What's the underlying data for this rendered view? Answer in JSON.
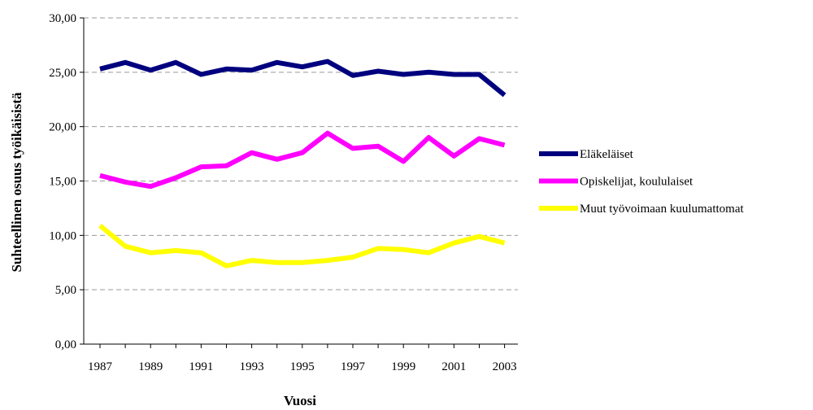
{
  "chart_data": {
    "type": "line",
    "title": "",
    "xlabel": "Vuosi",
    "ylabel": "Suhteellinen osuus työikäisistä",
    "ylim": [
      0,
      30
    ],
    "y_ticks": [
      "0,00",
      "5,00",
      "10,00",
      "15,00",
      "20,00",
      "25,00",
      "30,00"
    ],
    "x_tick_labels": [
      "1987",
      "1989",
      "1991",
      "1993",
      "1995",
      "1997",
      "1999",
      "2001",
      "2003"
    ],
    "grid": true,
    "legend_position": "right",
    "x": [
      1987,
      1988,
      1989,
      1990,
      1991,
      1992,
      1993,
      1994,
      1995,
      1996,
      1997,
      1998,
      1999,
      2000,
      2001,
      2002,
      2003
    ],
    "series": [
      {
        "name": "Eläkeläiset",
        "color": "#00007f",
        "values": [
          25.3,
          25.9,
          25.2,
          25.9,
          24.8,
          25.3,
          25.2,
          25.9,
          25.5,
          26.0,
          24.7,
          25.1,
          24.8,
          25.0,
          24.8,
          24.8,
          22.9
        ]
      },
      {
        "name": "Opiskelijat, koululaiset",
        "color": "#ff00ff",
        "values": [
          15.5,
          14.9,
          14.5,
          15.3,
          16.3,
          16.4,
          17.6,
          17.0,
          17.6,
          19.4,
          18.0,
          18.2,
          16.8,
          19.0,
          17.3,
          18.9,
          18.3
        ]
      },
      {
        "name": "Muut työvoimaan kuulumattomat",
        "color": "#ffff00",
        "values": [
          10.9,
          9.0,
          8.4,
          8.6,
          8.4,
          7.2,
          7.7,
          7.5,
          7.5,
          7.7,
          8.0,
          8.8,
          8.7,
          8.4,
          9.3,
          9.9,
          9.3
        ]
      }
    ]
  }
}
